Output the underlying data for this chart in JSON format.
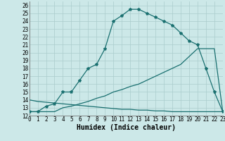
{
  "xlabel": "Humidex (Indice chaleur)",
  "bg_color": "#cce8e8",
  "grid_color": "#aacccc",
  "line_color": "#1a7070",
  "xlim": [
    0,
    23
  ],
  "ylim": [
    12,
    26.5
  ],
  "xticks": [
    0,
    1,
    2,
    3,
    4,
    5,
    6,
    7,
    8,
    9,
    10,
    11,
    12,
    13,
    14,
    15,
    16,
    17,
    18,
    19,
    20,
    21,
    22,
    23
  ],
  "yticks": [
    12,
    13,
    14,
    15,
    16,
    17,
    18,
    19,
    20,
    21,
    22,
    23,
    24,
    25,
    26
  ],
  "curve1_x": [
    0,
    1,
    2,
    3,
    4,
    5,
    6,
    7,
    8,
    9,
    10,
    11,
    12,
    13,
    14,
    15,
    16,
    17,
    18,
    19,
    20,
    21,
    22,
    23
  ],
  "curve1_y": [
    12.5,
    12.5,
    13.2,
    13.5,
    15.0,
    15.0,
    16.5,
    18.0,
    18.5,
    20.5,
    24.0,
    24.7,
    25.5,
    25.5,
    25.0,
    24.5,
    24.0,
    23.5,
    22.5,
    21.5,
    21.0,
    18.0,
    15.0,
    12.5
  ],
  "curve2_x": [
    0,
    1,
    2,
    3,
    4,
    5,
    6,
    7,
    8,
    9,
    10,
    11,
    12,
    13,
    14,
    15,
    16,
    17,
    18,
    19,
    20,
    21,
    22,
    23
  ],
  "curve2_y": [
    12.5,
    12.5,
    12.5,
    12.5,
    13.0,
    13.2,
    13.5,
    13.8,
    14.2,
    14.5,
    15.0,
    15.3,
    15.7,
    16.0,
    16.5,
    17.0,
    17.5,
    18.0,
    18.5,
    19.5,
    20.5,
    20.5,
    20.5,
    12.5
  ],
  "curve3_x": [
    0,
    1,
    2,
    3,
    4,
    5,
    6,
    7,
    8,
    9,
    10,
    11,
    12,
    13,
    14,
    15,
    16,
    17,
    18,
    19,
    20,
    21,
    22,
    23
  ],
  "curve3_y": [
    14.0,
    13.8,
    13.7,
    13.6,
    13.5,
    13.4,
    13.3,
    13.2,
    13.1,
    13.0,
    12.9,
    12.8,
    12.8,
    12.7,
    12.7,
    12.6,
    12.6,
    12.5,
    12.5,
    12.5,
    12.5,
    12.5,
    12.5,
    12.5
  ],
  "tick_fontsize": 5.5,
  "xlabel_fontsize": 7.0
}
